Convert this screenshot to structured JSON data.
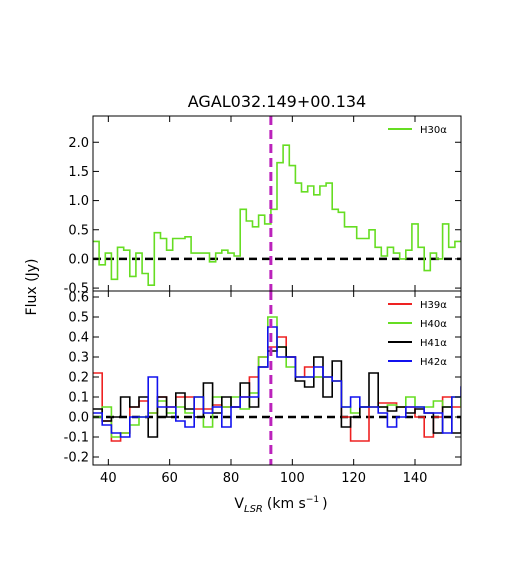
{
  "chart_data": {
    "type": "line",
    "title": "AGAL032.149+00.134",
    "ylabel": "Flux (Jy)",
    "xlabel_main": "V",
    "xlabel_sub": "LSR",
    "xlabel_units": "(km s",
    "xlabel_exp": "−1",
    "xlabel_close": ")",
    "xlim": [
      35,
      155
    ],
    "x_ticks": [
      40,
      60,
      80,
      100,
      120,
      140
    ],
    "vline_x": 93,
    "vline_color": "#bb22bb",
    "zero_line_color": "#000000",
    "panels": [
      {
        "ylim": [
          -0.55,
          2.45
        ],
        "y_ticks": [
          -0.5,
          0.0,
          0.5,
          1.0,
          1.5,
          2.0
        ],
        "y_tick_labels": [
          "-0.5",
          "0.0",
          "0.5",
          "1.0",
          "1.5",
          "2.0"
        ],
        "series": [
          {
            "name": "H30α",
            "color": "#66dd22",
            "x": [
              35,
              37,
              39,
              41,
              43,
              45,
              47,
              49,
              51,
              53,
              55,
              57,
              59,
              61,
              63,
              65,
              67,
              69,
              71,
              73,
              75,
              77,
              79,
              81,
              83,
              85,
              87,
              89,
              91,
              93,
              95,
              97,
              99,
              101,
              103,
              105,
              107,
              109,
              111,
              113,
              115,
              117,
              119,
              121,
              123,
              125,
              127,
              129,
              131,
              133,
              135,
              137,
              139,
              141,
              143,
              145,
              147,
              149,
              151,
              153,
              155
            ],
            "y": [
              0.3,
              -0.1,
              0.1,
              -0.35,
              0.2,
              0.15,
              -0.3,
              0.1,
              -0.25,
              -0.45,
              0.45,
              0.35,
              0.15,
              0.35,
              0.35,
              0.38,
              0.1,
              0.1,
              0.1,
              -0.05,
              0.1,
              0.15,
              0.1,
              0.05,
              0.85,
              0.65,
              0.55,
              0.75,
              0.6,
              0.85,
              1.65,
              1.95,
              1.6,
              1.3,
              1.15,
              1.25,
              1.1,
              1.25,
              1.3,
              0.85,
              0.8,
              0.55,
              0.55,
              0.35,
              0.35,
              0.5,
              0.2,
              0.05,
              0.2,
              0.1,
              0.0,
              0.15,
              0.6,
              0.2,
              -0.2,
              0.1,
              0.0,
              0.6,
              0.2,
              0.3,
              0.3
            ]
          }
        ]
      },
      {
        "ylim": [
          -0.24,
          0.63
        ],
        "y_ticks": [
          -0.2,
          -0.1,
          0.0,
          0.1,
          0.2,
          0.3,
          0.4,
          0.5,
          0.6
        ],
        "y_tick_labels": [
          "-0.2",
          "-0.1",
          "0.0",
          "0.1",
          "0.2",
          "0.3",
          "0.4",
          "0.5",
          "0.6"
        ],
        "series": [
          {
            "name": "H39α",
            "color": "#ee2222",
            "x": [
              35,
              38,
              41,
              44,
              47,
              50,
              53,
              56,
              59,
              62,
              65,
              68,
              71,
              74,
              77,
              80,
              83,
              86,
              89,
              92,
              95,
              98,
              101,
              104,
              107,
              110,
              113,
              116,
              119,
              122,
              125,
              128,
              131,
              134,
              137,
              140,
              143,
              146,
              149,
              152,
              155
            ],
            "y": [
              0.22,
              -0.02,
              -0.12,
              -0.08,
              0.05,
              0.08,
              0.02,
              0.1,
              0.05,
              0.1,
              0.1,
              0.04,
              0.04,
              0.06,
              0.05,
              0.05,
              0.1,
              0.2,
              0.3,
              0.35,
              0.4,
              0.3,
              0.2,
              0.25,
              0.2,
              0.2,
              0.18,
              0.0,
              -0.12,
              -0.12,
              0.05,
              0.07,
              0.07,
              0.05,
              0.05,
              0.0,
              -0.1,
              0.0,
              0.1,
              0.05,
              0.05
            ]
          },
          {
            "name": "H40α",
            "color": "#66dd22",
            "x": [
              35,
              38,
              41,
              44,
              47,
              50,
              53,
              56,
              59,
              62,
              65,
              68,
              71,
              74,
              77,
              80,
              83,
              86,
              89,
              92,
              95,
              98,
              101,
              104,
              107,
              110,
              113,
              116,
              119,
              122,
              125,
              128,
              131,
              134,
              137,
              140,
              143,
              146,
              149,
              152,
              155
            ],
            "y": [
              0.0,
              0.05,
              -0.1,
              -0.08,
              -0.04,
              0.0,
              0.02,
              0.08,
              0.02,
              0.05,
              0.02,
              0.1,
              -0.05,
              0.1,
              0.05,
              0.1,
              0.04,
              0.12,
              0.3,
              0.5,
              0.35,
              0.25,
              0.2,
              0.2,
              0.2,
              0.2,
              0.18,
              0.05,
              0.02,
              0.05,
              0.05,
              0.05,
              0.06,
              0.05,
              0.1,
              0.05,
              0.05,
              0.08,
              0.05,
              0.1,
              0.05
            ]
          },
          {
            "name": "H41α",
            "color": "#000000",
            "x": [
              35,
              38,
              41,
              44,
              47,
              50,
              53,
              56,
              59,
              62,
              65,
              68,
              71,
              74,
              77,
              80,
              83,
              86,
              89,
              92,
              95,
              98,
              101,
              104,
              107,
              110,
              113,
              116,
              119,
              122,
              125,
              128,
              131,
              134,
              137,
              140,
              143,
              146,
              149,
              152,
              155
            ],
            "y": [
              0.04,
              -0.02,
              0.0,
              0.1,
              0.05,
              0.1,
              -0.1,
              0.1,
              0.0,
              0.12,
              0.04,
              0.0,
              0.17,
              0.02,
              0.1,
              0.05,
              0.17,
              0.05,
              0.25,
              0.33,
              0.35,
              0.3,
              0.18,
              0.15,
              0.3,
              0.1,
              0.28,
              -0.05,
              0.0,
              0.05,
              0.22,
              0.05,
              0.03,
              0.05,
              0.02,
              0.04,
              0.02,
              -0.08,
              0.05,
              -0.08,
              0.0
            ]
          },
          {
            "name": "H42α",
            "color": "#1111ee",
            "x": [
              35,
              38,
              41,
              44,
              47,
              50,
              53,
              56,
              59,
              62,
              65,
              68,
              71,
              74,
              77,
              80,
              83,
              86,
              89,
              92,
              95,
              98,
              101,
              104,
              107,
              110,
              113,
              116,
              119,
              122,
              125,
              128,
              131,
              134,
              137,
              140,
              143,
              146,
              149,
              152,
              155
            ],
            "y": [
              0.02,
              -0.04,
              -0.08,
              -0.1,
              0.0,
              0.0,
              0.2,
              0.05,
              0.05,
              -0.02,
              -0.05,
              0.1,
              0.02,
              0.05,
              -0.05,
              0.05,
              0.1,
              0.1,
              0.25,
              0.45,
              0.3,
              0.3,
              0.2,
              0.2,
              0.25,
              0.2,
              0.18,
              0.05,
              0.1,
              0.05,
              0.05,
              0.02,
              -0.05,
              0.0,
              0.05,
              0.05,
              0.02,
              0.02,
              -0.08,
              0.1,
              0.15
            ]
          }
        ]
      }
    ]
  }
}
